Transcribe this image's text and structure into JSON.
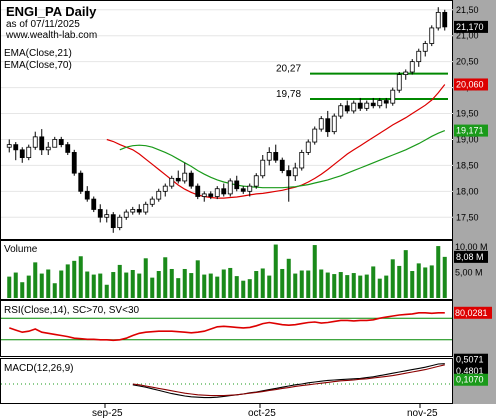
{
  "header": {
    "title": "ENGI_PA Daily",
    "date_line": "as of 07/11/2025",
    "source": "www.wealth-lab.com"
  },
  "legend": {
    "ema_fast": "EMA(Close,21)",
    "ema_slow": "EMA(Close,70)"
  },
  "levels": [
    {
      "label": "20,27",
      "value": 20.27
    },
    {
      "label": "19,78",
      "value": 19.78
    }
  ],
  "price_axis": {
    "ticks": [
      "21,50",
      "21,00",
      "20,50",
      "20,00",
      "19,50",
      "19,00",
      "18,50",
      "18,00",
      "17,50"
    ],
    "tags": [
      {
        "label": "21,170",
        "value": 21.17,
        "color": "#000000"
      },
      {
        "label": "20,060",
        "value": 20.06,
        "color": "#dd0000"
      },
      {
        "label": "19,171",
        "value": 19.171,
        "color": "#1a9a1a"
      }
    ]
  },
  "volume": {
    "title": "Volume",
    "ticks": [
      "10,00 M",
      "5,00 M"
    ],
    "tag": "8,08 M"
  },
  "rsi": {
    "title": "RSI(Close,14), SC>70, SV<30",
    "tag": "80,0281",
    "levels": [
      70,
      30
    ]
  },
  "macd": {
    "title": "MACD(12,26,9)",
    "tags": [
      "0,5071",
      "0,4801",
      "0,1070"
    ]
  },
  "x_axis": {
    "labels": [
      "sep-25",
      "oct-25",
      "nov-25"
    ]
  },
  "colors": {
    "up_body": "#ffffff",
    "down_body": "#000000",
    "ema_fast": "#dd0000",
    "ema_slow": "#1a9a1a",
    "level_line": "#008800",
    "volume_bar": "#1a8a1a",
    "axis_bg": "#a8a8a8",
    "rsi_line": "#dd0000",
    "macd_line": "#000000",
    "signal_line": "#8b0000",
    "histogram": "#1a9a1a"
  },
  "chart_data": {
    "type": "candlestick",
    "title": "ENGI_PA Daily",
    "x_labels": [
      "sep-25",
      "oct-25",
      "nov-25"
    ],
    "ylim": [
      17.1,
      21.65
    ],
    "candles": [
      [
        18.85,
        19.0,
        18.75,
        18.9
      ],
      [
        18.9,
        18.95,
        18.6,
        18.8
      ],
      [
        18.8,
        18.85,
        18.55,
        18.65
      ],
      [
        18.65,
        18.9,
        18.6,
        18.85
      ],
      [
        18.85,
        19.15,
        18.8,
        19.05
      ],
      [
        19.05,
        19.2,
        18.7,
        18.8
      ],
      [
        18.8,
        18.95,
        18.7,
        18.85
      ],
      [
        18.85,
        19.05,
        18.85,
        19.0
      ],
      [
        19.0,
        19.05,
        18.85,
        18.9
      ],
      [
        18.9,
        18.95,
        18.7,
        18.75
      ],
      [
        18.75,
        18.8,
        18.3,
        18.35
      ],
      [
        18.35,
        18.4,
        17.95,
        18.0
      ],
      [
        18.0,
        18.1,
        17.8,
        17.85
      ],
      [
        17.85,
        17.9,
        17.6,
        17.65
      ],
      [
        17.65,
        17.75,
        17.4,
        17.5
      ],
      [
        17.5,
        17.65,
        17.4,
        17.55
      ],
      [
        17.55,
        17.6,
        17.2,
        17.3
      ],
      [
        17.3,
        17.55,
        17.25,
        17.5
      ],
      [
        17.5,
        17.65,
        17.45,
        17.6
      ],
      [
        17.6,
        17.7,
        17.55,
        17.65
      ],
      [
        17.65,
        17.75,
        17.55,
        17.6
      ],
      [
        17.6,
        17.8,
        17.55,
        17.75
      ],
      [
        17.75,
        17.9,
        17.7,
        17.85
      ],
      [
        17.85,
        18.05,
        17.8,
        18.0
      ],
      [
        18.0,
        18.15,
        17.9,
        18.1
      ],
      [
        18.1,
        18.3,
        18.05,
        18.25
      ],
      [
        18.25,
        18.4,
        18.15,
        18.2
      ],
      [
        18.2,
        18.55,
        18.15,
        18.35
      ],
      [
        18.35,
        18.4,
        18.05,
        18.1
      ],
      [
        18.1,
        18.15,
        17.85,
        17.9
      ],
      [
        17.9,
        18.0,
        17.8,
        17.95
      ],
      [
        17.95,
        18.0,
        17.85,
        17.9
      ],
      [
        17.9,
        18.1,
        17.85,
        18.05
      ],
      [
        18.05,
        18.15,
        17.9,
        17.95
      ],
      [
        17.95,
        18.25,
        17.9,
        18.2
      ],
      [
        18.2,
        18.3,
        18.0,
        18.05
      ],
      [
        18.05,
        18.1,
        17.95,
        18.0
      ],
      [
        18.0,
        18.15,
        17.9,
        18.1
      ],
      [
        18.1,
        18.35,
        18.05,
        18.3
      ],
      [
        18.3,
        18.7,
        18.25,
        18.6
      ],
      [
        18.6,
        18.85,
        18.5,
        18.75
      ],
      [
        18.75,
        18.9,
        18.55,
        18.6
      ],
      [
        18.6,
        18.65,
        18.35,
        18.4
      ],
      [
        18.4,
        18.5,
        17.8,
        18.3
      ],
      [
        18.3,
        18.55,
        18.2,
        18.45
      ],
      [
        18.45,
        18.8,
        18.4,
        18.75
      ],
      [
        18.75,
        19.0,
        18.7,
        18.95
      ],
      [
        18.95,
        19.25,
        18.9,
        19.2
      ],
      [
        19.2,
        19.45,
        19.15,
        19.4
      ],
      [
        19.4,
        19.55,
        19.05,
        19.15
      ],
      [
        19.15,
        19.5,
        19.1,
        19.45
      ],
      [
        19.45,
        19.7,
        19.4,
        19.65
      ],
      [
        19.65,
        19.75,
        19.5,
        19.55
      ],
      [
        19.55,
        19.75,
        19.5,
        19.7
      ],
      [
        19.7,
        19.8,
        19.55,
        19.6
      ],
      [
        19.6,
        19.75,
        19.55,
        19.7
      ],
      [
        19.7,
        19.8,
        19.6,
        19.65
      ],
      [
        19.65,
        19.8,
        19.6,
        19.75
      ],
      [
        19.75,
        19.8,
        19.6,
        19.7
      ],
      [
        19.7,
        20.0,
        19.65,
        19.95
      ],
      [
        19.95,
        20.3,
        19.9,
        20.25
      ],
      [
        20.25,
        20.35,
        20.15,
        20.3
      ],
      [
        20.3,
        20.55,
        20.25,
        20.5
      ],
      [
        20.5,
        20.75,
        20.4,
        20.7
      ],
      [
        20.7,
        20.9,
        20.6,
        20.85
      ],
      [
        20.85,
        21.2,
        20.8,
        21.15
      ],
      [
        21.15,
        21.55,
        21.1,
        21.45
      ],
      [
        21.45,
        21.5,
        21.1,
        21.17
      ]
    ],
    "series": [
      {
        "name": "EMA(Close,21)",
        "color": "#dd0000",
        "values": [
          19.0,
          18.96,
          18.9,
          18.85,
          18.8,
          18.72,
          18.62,
          18.52,
          18.42,
          18.32,
          18.22,
          18.12,
          18.04,
          17.98,
          17.93,
          17.9,
          17.88,
          17.87,
          17.87,
          17.88,
          17.89,
          17.91,
          17.93,
          17.95,
          17.96,
          17.98,
          18.0,
          18.02,
          18.05,
          18.08,
          18.12,
          18.18,
          18.25,
          18.33,
          18.42,
          18.52,
          18.62,
          18.72,
          18.8,
          18.88,
          18.96,
          19.04,
          19.12,
          19.2,
          19.28,
          19.35,
          19.42,
          19.5,
          19.58,
          19.66,
          19.76,
          19.9,
          20.06
        ]
      },
      {
        "name": "EMA(Close,70)",
        "color": "#1a9a1a",
        "values": [
          18.8,
          18.85,
          18.88,
          18.89,
          18.88,
          18.85,
          18.8,
          18.75,
          18.69,
          18.62,
          18.55,
          18.48,
          18.4,
          18.33,
          18.27,
          18.22,
          18.18,
          18.15,
          18.12,
          18.1,
          18.09,
          18.08,
          18.07,
          18.07,
          18.07,
          18.07,
          18.08,
          18.09,
          18.11,
          18.13,
          18.16,
          18.19,
          18.22,
          18.26,
          18.3,
          18.35,
          18.4,
          18.45,
          18.5,
          18.55,
          18.6,
          18.65,
          18.7,
          18.75,
          18.8,
          18.86,
          18.92,
          18.99,
          19.06,
          19.12,
          19.17
        ]
      }
    ],
    "volume_ylim": [
      0,
      11
    ],
    "volume": [
      4.2,
      5.0,
      3.1,
      4.4,
      7.0,
      4.8,
      5.6,
      2.9,
      5.4,
      6.6,
      7.3,
      8.2,
      5.2,
      4.6,
      4.8,
      2.6,
      5.1,
      6.5,
      5.0,
      5.5,
      4.8,
      7.8,
      4.0,
      5.3,
      8.0,
      5.7,
      3.9,
      5.7,
      4.9,
      7.4,
      4.6,
      4.8,
      4.2,
      5.6,
      5.9,
      4.3,
      3.4,
      3.7,
      5.3,
      5.8,
      4.4,
      10.5,
      5.7,
      7.7,
      4.8,
      5.4,
      5.4,
      10.4,
      5.6,
      5.0,
      4.7,
      5.1,
      4.5,
      4.9,
      4.4,
      4.6,
      6.2,
      3.8,
      4.4,
      7.6,
      6.3,
      9.4,
      5.3,
      6.8,
      6.0,
      6.4,
      10.2,
      8.08
    ],
    "rsi_ylim": [
      0,
      100
    ],
    "rsi": [
      52,
      48,
      44,
      46,
      50,
      44,
      42,
      40,
      38,
      36,
      33,
      32,
      31,
      31,
      30,
      30,
      29,
      30,
      33,
      38,
      42,
      44,
      45,
      46,
      46,
      46,
      45,
      44,
      43,
      44,
      46,
      50,
      54,
      55,
      54,
      53,
      52,
      53,
      56,
      60,
      62,
      60,
      58,
      57,
      58,
      60,
      62,
      63,
      61,
      62,
      64,
      66,
      66,
      65,
      66,
      66,
      67,
      70,
      72,
      74,
      76,
      77,
      78,
      80,
      80,
      79,
      80,
      80.03
    ],
    "macd_ylim": [
      -0.45,
      0.6
    ],
    "macd": [
      -0.02,
      -0.05,
      -0.08,
      -0.12,
      -0.16,
      -0.2,
      -0.24,
      -0.27,
      -0.3,
      -0.32,
      -0.33,
      -0.34,
      -0.34,
      -0.33,
      -0.31,
      -0.29,
      -0.27,
      -0.25,
      -0.22,
      -0.2,
      -0.17,
      -0.14,
      -0.11,
      -0.08,
      -0.05,
      -0.02,
      0.0,
      0.03,
      0.05,
      0.07,
      0.09,
      0.1,
      0.11,
      0.12,
      0.13,
      0.14,
      0.16,
      0.18,
      0.21,
      0.24,
      0.27,
      0.3,
      0.33,
      0.36,
      0.39,
      0.42,
      0.46,
      0.5,
      0.5071
    ],
    "signal": [
      0.0,
      -0.02,
      -0.05,
      -0.08,
      -0.11,
      -0.14,
      -0.17,
      -0.2,
      -0.23,
      -0.25,
      -0.27,
      -0.28,
      -0.29,
      -0.29,
      -0.29,
      -0.28,
      -0.27,
      -0.25,
      -0.23,
      -0.21,
      -0.19,
      -0.16,
      -0.14,
      -0.11,
      -0.09,
      -0.06,
      -0.04,
      -0.02,
      0.0,
      0.02,
      0.04,
      0.06,
      0.08,
      0.09,
      0.1,
      0.12,
      0.13,
      0.15,
      0.17,
      0.19,
      0.21,
      0.24,
      0.27,
      0.3,
      0.33,
      0.36,
      0.4,
      0.44,
      0.4801
    ],
    "histogram": [
      0.107
    ]
  }
}
